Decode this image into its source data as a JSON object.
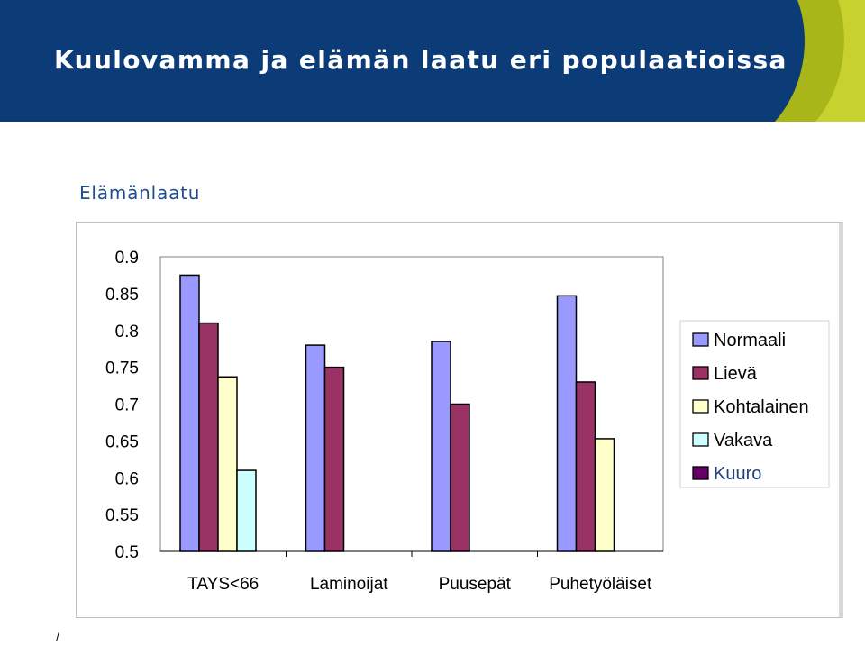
{
  "slide": {
    "title": "Kuulovamma ja elämän laatu eri populaatioissa",
    "section_label": "Elämänlaatu",
    "footer_mark": "/"
  },
  "colors": {
    "header_navy": "#0c3c78",
    "header_accent": "#a8b61a"
  },
  "chart_data": {
    "type": "bar",
    "categories": [
      "TAYS<66",
      "Laminoijat",
      "Puusepät",
      "Puhetyöläiset"
    ],
    "series": [
      {
        "name": "Normaali",
        "color": "#9999ff",
        "values": [
          0.875,
          0.78,
          0.785,
          0.847
        ]
      },
      {
        "name": "Lievä",
        "color": "#993366",
        "values": [
          0.81,
          0.75,
          0.7,
          0.73
        ]
      },
      {
        "name": "Kohtalainen",
        "color": "#ffffcc",
        "values": [
          0.737,
          null,
          null,
          0.653
        ]
      },
      {
        "name": "Vakava",
        "color": "#ccffff",
        "values": [
          0.61,
          null,
          null,
          null
        ]
      },
      {
        "name": "Kuuro",
        "color": "#660066",
        "values": [
          null,
          null,
          null,
          null
        ]
      }
    ],
    "y_ticks": [
      "0.9",
      "0.85",
      "0.8",
      "0.75",
      "0.7",
      "0.65",
      "0.6",
      "0.55",
      "0.5"
    ],
    "ylim": [
      0.5,
      0.9
    ],
    "grid": false,
    "legend_position": "right"
  }
}
